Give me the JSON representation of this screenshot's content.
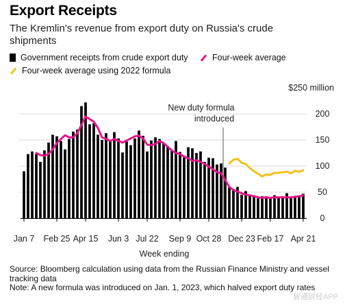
{
  "title": "Export Receipts",
  "subtitle": "The Kremlin's revenue from export duty on Russia's crude shipments",
  "legend": {
    "bars": "Government receipts from crude export duty",
    "avg": "Four-week average",
    "avg2022": "Four-week average using 2022 formula"
  },
  "colors": {
    "bars": "#000000",
    "avg": "#e5168b",
    "avg2022": "#f2c21b",
    "grid": "#d9d9d9",
    "annotation_line": "#555555"
  },
  "annotation": {
    "line1": "New duty formula",
    "line2": "introduced"
  },
  "footer": {
    "source": "Source: Bloomberg calculation using data from the Russian Finance Ministry and vessel tracking data",
    "note": "Note: A new formula was introduced on Jan. 1, 2023, which halved export duty rates"
  },
  "watermark": "智通财经APP",
  "chart_data": {
    "type": "bar",
    "x_ticks": [
      "Jan 7",
      "Feb 25",
      "Apr 15",
      "Jun 3",
      "Jul 22",
      "Sep 9",
      "Oct 28",
      "Dec 23",
      "Feb 17",
      "Apr 21"
    ],
    "xlabel": "Week ending",
    "y_ticks": [
      0,
      50,
      100,
      150,
      200
    ],
    "y_top_label": "$250 million",
    "ylim": [
      0,
      250
    ],
    "annotation_after_bar": 48,
    "bars": [
      90,
      123,
      128,
      123,
      108,
      130,
      145,
      160,
      157,
      148,
      132,
      152,
      166,
      170,
      215,
      222,
      180,
      182,
      160,
      150,
      163,
      148,
      165,
      153,
      126,
      147,
      140,
      153,
      168,
      158,
      128,
      149,
      155,
      152,
      143,
      138,
      130,
      148,
      127,
      118,
      136,
      134,
      125,
      128,
      108,
      116,
      115,
      103,
      105,
      97,
      59,
      56,
      60,
      45,
      52,
      45,
      44,
      38,
      42,
      42,
      38,
      44,
      39,
      42,
      48,
      40,
      43,
      42,
      47
    ],
    "series": [
      {
        "name": "Four-week average",
        "values": [
          null,
          null,
          null,
          125,
          121,
          120,
          123,
          132,
          144,
          152,
          159,
          155,
          155,
          163,
          179,
          195,
          190,
          185,
          173,
          155,
          152,
          148,
          152,
          148,
          145,
          149,
          153,
          157,
          158,
          153,
          141,
          140,
          142,
          148,
          144,
          137,
          130,
          125,
          123,
          118,
          115,
          110,
          111,
          108,
          104,
          99,
          94,
          88,
          86,
          73,
          60,
          54,
          51,
          48,
          45,
          44,
          42,
          40,
          39,
          40,
          39,
          40,
          40,
          40,
          40,
          40,
          41,
          42,
          44
        ]
      },
      {
        "name": "Four-week average using 2022 formula",
        "values": [
          null,
          null,
          null,
          null,
          null,
          null,
          null,
          null,
          null,
          null,
          null,
          null,
          null,
          null,
          null,
          null,
          null,
          null,
          null,
          null,
          null,
          null,
          null,
          null,
          null,
          null,
          null,
          null,
          null,
          null,
          null,
          null,
          null,
          null,
          null,
          null,
          null,
          null,
          null,
          null,
          null,
          null,
          null,
          null,
          null,
          null,
          null,
          null,
          null,
          null,
          105,
          112,
          114,
          106,
          104,
          96,
          90,
          85,
          80,
          84,
          83,
          87,
          87,
          88,
          89,
          86,
          91,
          89,
          92
        ]
      }
    ]
  }
}
